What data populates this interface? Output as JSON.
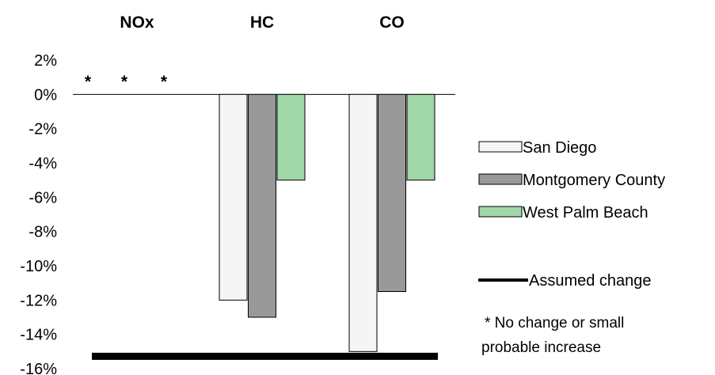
{
  "chart_data": {
    "type": "bar",
    "categories": [
      "NOx",
      "HC",
      "CO"
    ],
    "series": [
      {
        "name": "San Diego",
        "color": "#f5f5f5",
        "values": [
          null,
          -12.0,
          -15.0
        ]
      },
      {
        "name": "Montgomery County",
        "color": "#999999",
        "values": [
          null,
          -13.0,
          -11.5
        ]
      },
      {
        "name": "West Palm Beach",
        "color": "#a0d6a8",
        "values": [
          null,
          -5.0,
          -5.0
        ]
      }
    ],
    "assumed_change": {
      "label": "Assumed change",
      "value": -15.0
    },
    "y_ticks": [
      "2%",
      "0%",
      "-2%",
      "-4%",
      "-6%",
      "-8%",
      "-10%",
      "-12%",
      "-14%",
      "-16%"
    ],
    "ylim": [
      -16,
      2
    ],
    "nox_markers": [
      "*",
      "*",
      "*"
    ],
    "footnote_line1": "*  No change or small",
    "footnote_line2": "probable increase",
    "legend_position": "right",
    "grid": false
  }
}
